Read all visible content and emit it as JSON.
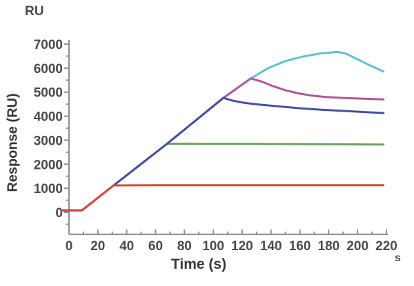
{
  "labels": {
    "y_unit": "RU",
    "x_unit": "s"
  },
  "chart_data": {
    "type": "line",
    "title": "",
    "xlabel": "Time (s)",
    "ylabel": "Response (RU)",
    "xlim": [
      -5,
      220
    ],
    "ylim": [
      -800,
      7300
    ],
    "grid": false,
    "legend_position": "none",
    "axis_color": "#8f8f8f",
    "tick_label_color": "#4a4a4a",
    "tick_label_size": 19,
    "x_ticks": [
      0,
      20,
      40,
      60,
      80,
      100,
      120,
      140,
      160,
      180,
      200,
      220
    ],
    "x_minor_ticks": [
      10,
      30,
      50,
      70,
      90,
      110,
      130,
      150,
      170,
      190,
      210
    ],
    "y_ticks": [
      0,
      1000,
      2000,
      3000,
      4000,
      5000,
      6000,
      7000
    ],
    "y_minor_ticks": [
      -500,
      500,
      1500,
      2500,
      3500,
      4500,
      5500,
      6500
    ],
    "series": [
      {
        "name": "cyan-curve-highest-concentration",
        "color": "#5ec3cf",
        "points": [
          [
            -5,
            80
          ],
          [
            9,
            80
          ],
          [
            31,
            1120
          ],
          [
            68,
            2855
          ],
          [
            107,
            4760
          ],
          [
            126,
            5570
          ],
          [
            138,
            6000
          ],
          [
            150,
            6290
          ],
          [
            162,
            6480
          ],
          [
            174,
            6610
          ],
          [
            186,
            6680
          ],
          [
            192,
            6600
          ],
          [
            200,
            6370
          ],
          [
            208,
            6130
          ],
          [
            218,
            5860
          ]
        ]
      },
      {
        "name": "magenta-curve",
        "color": "#b4549c",
        "points": [
          [
            -5,
            80
          ],
          [
            9,
            80
          ],
          [
            31,
            1120
          ],
          [
            68,
            2855
          ],
          [
            107,
            4760
          ],
          [
            126,
            5570
          ],
          [
            133,
            5450
          ],
          [
            141,
            5260
          ],
          [
            150,
            5080
          ],
          [
            159,
            4950
          ],
          [
            168,
            4860
          ],
          [
            178,
            4800
          ],
          [
            190,
            4760
          ],
          [
            203,
            4730
          ],
          [
            218,
            4700
          ]
        ]
      },
      {
        "name": "green-curve",
        "color": "#69a45b",
        "points": [
          [
            -5,
            80
          ],
          [
            9,
            80
          ],
          [
            31,
            1120
          ],
          [
            68,
            2855
          ],
          [
            90,
            2850
          ],
          [
            120,
            2845
          ],
          [
            150,
            2840
          ],
          [
            185,
            2830
          ],
          [
            218,
            2820
          ]
        ]
      },
      {
        "name": "blue-curve",
        "color": "#474fa3",
        "points": [
          [
            -5,
            80
          ],
          [
            9,
            80
          ],
          [
            31,
            1120
          ],
          [
            68,
            2855
          ],
          [
            107,
            4760
          ],
          [
            114,
            4640
          ],
          [
            122,
            4550
          ],
          [
            132,
            4480
          ],
          [
            145,
            4410
          ],
          [
            160,
            4330
          ],
          [
            175,
            4270
          ],
          [
            190,
            4220
          ],
          [
            205,
            4170
          ],
          [
            218,
            4130
          ]
        ]
      },
      {
        "name": "red-curve-lowest-concentration",
        "color": "#d34a42",
        "points": [
          [
            -5,
            80
          ],
          [
            9,
            80
          ],
          [
            31,
            1120
          ],
          [
            60,
            1125
          ],
          [
            100,
            1125
          ],
          [
            140,
            1125
          ],
          [
            180,
            1125
          ],
          [
            218,
            1125
          ]
        ]
      }
    ]
  }
}
